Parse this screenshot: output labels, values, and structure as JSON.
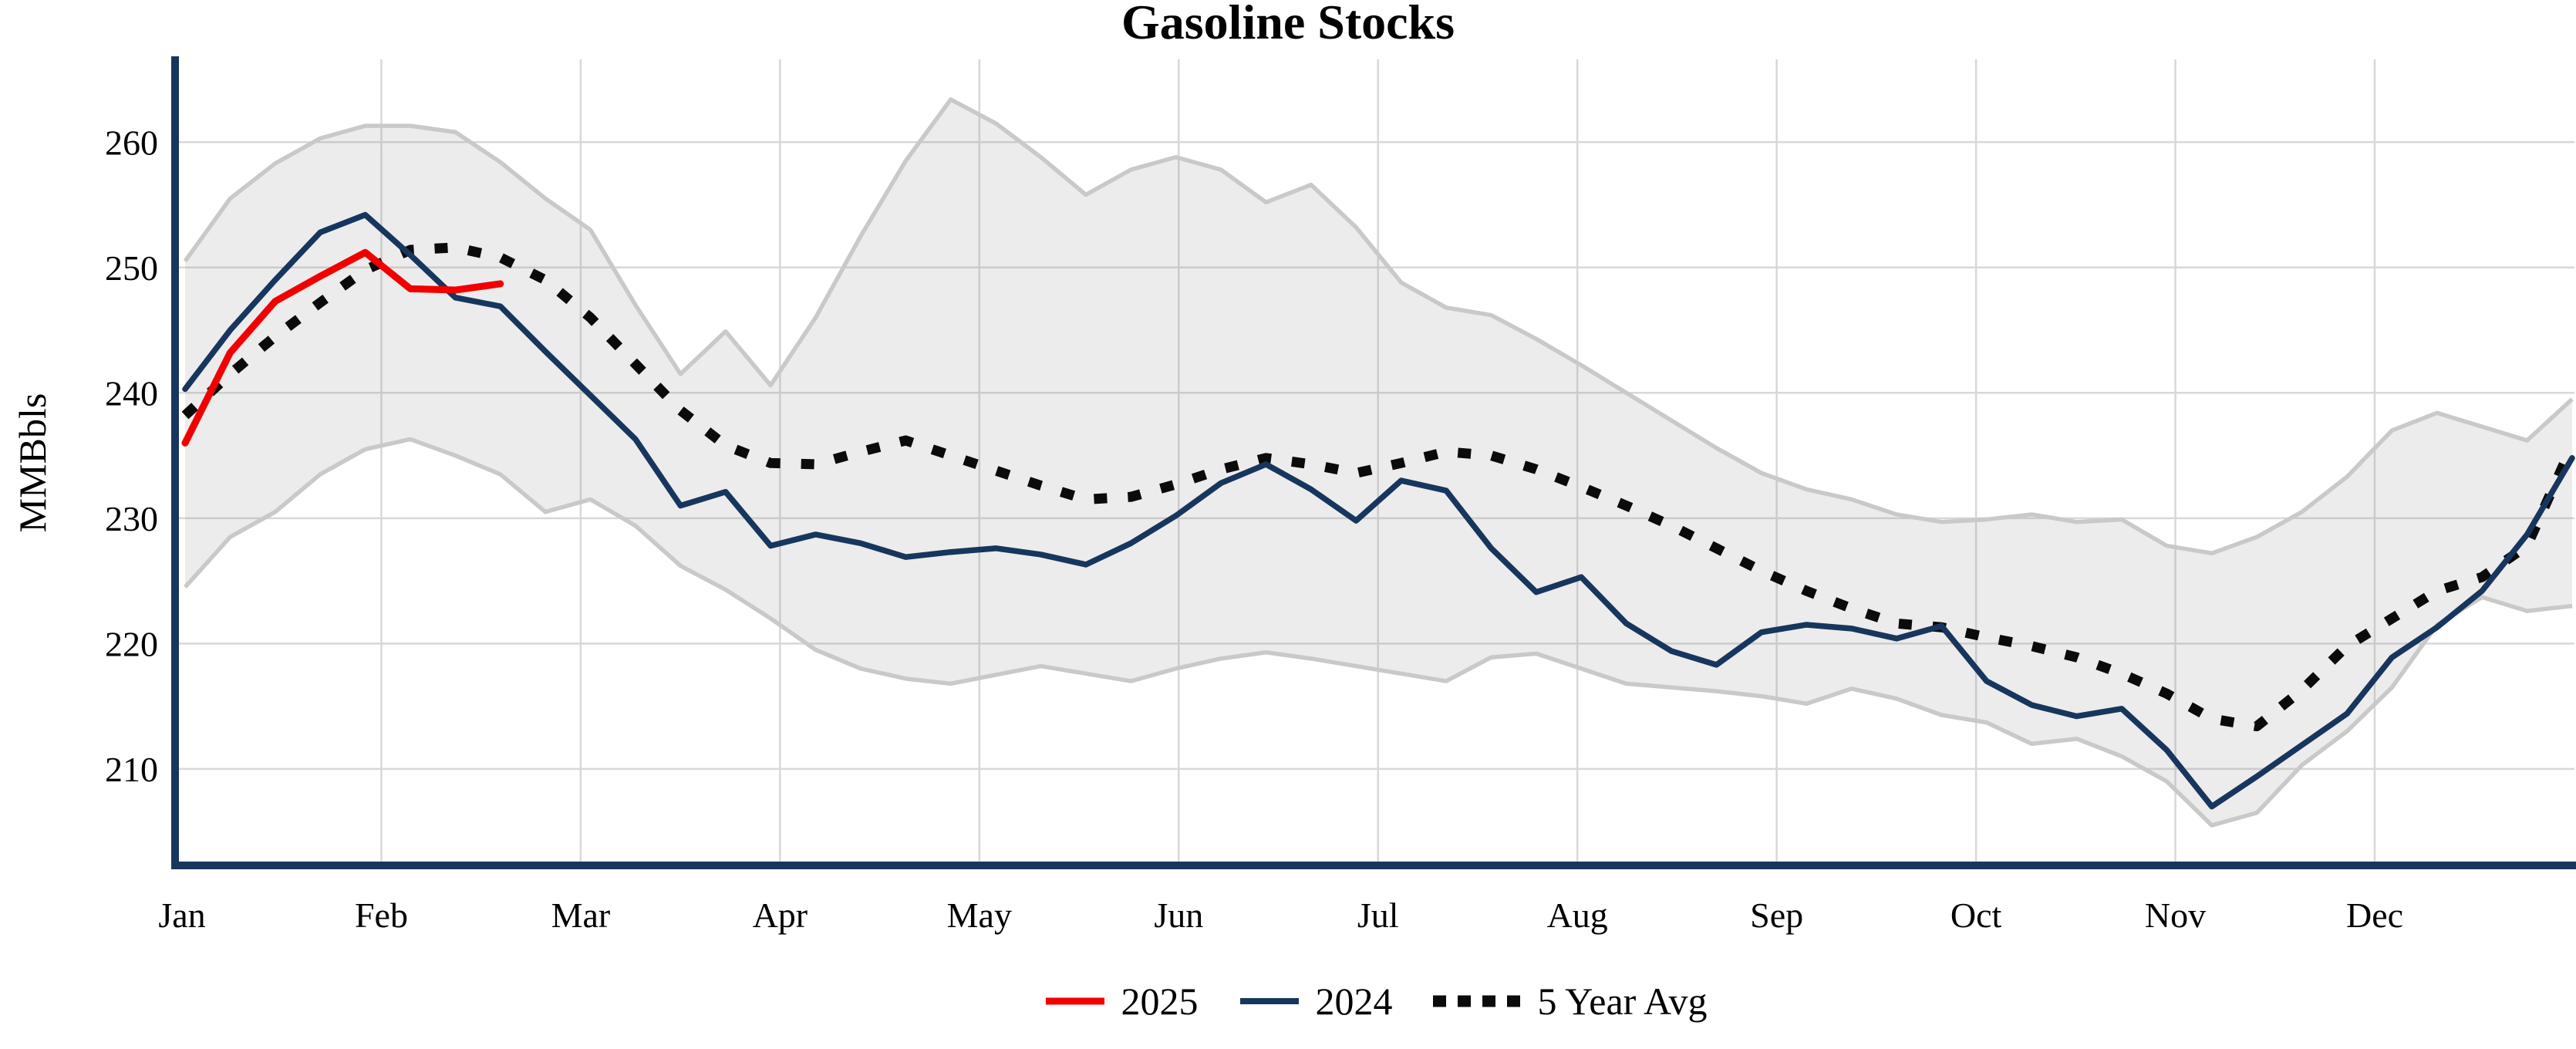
{
  "chart_data": {
    "type": "line",
    "title": "Gasoline Stocks",
    "ylabel": "MMBbls",
    "x_tick_labels": [
      "Jan",
      "Feb",
      "Mar",
      "Apr",
      "May",
      "Jun",
      "Jul",
      "Aug",
      "Sep",
      "Oct",
      "Nov",
      "Dec"
    ],
    "y_ticks": [
      210,
      220,
      230,
      240,
      250,
      260
    ],
    "y_range": [
      202.3,
      266.6
    ],
    "grid": true,
    "legend_position": "bottom-center",
    "series": [
      {
        "name": "2025",
        "color": "#f20000",
        "style": "solid",
        "stroke_width": 9,
        "values": [
          236.0,
          243.2,
          247.3,
          249.3,
          251.2,
          248.3,
          248.2,
          248.7
        ]
      },
      {
        "name": "2024",
        "color": "#17365d",
        "style": "solid",
        "stroke_width": 7.5,
        "values": [
          240.3,
          245.0,
          249.0,
          252.8,
          254.2,
          251.0,
          247.6,
          246.9,
          243.3,
          239.8,
          236.3,
          231.0,
          232.1,
          227.8,
          228.7,
          228.0,
          226.9,
          227.3,
          227.6,
          227.1,
          226.3,
          228.0,
          230.2,
          232.8,
          234.3,
          232.3,
          229.8,
          233.0,
          232.2,
          227.6,
          224.1,
          225.3,
          221.6,
          219.4,
          218.3,
          220.9,
          221.5,
          221.2,
          220.4,
          221.4,
          217.0,
          215.1,
          214.2,
          214.8,
          211.5,
          207.0,
          209.4,
          211.9,
          214.4,
          218.9,
          221.3,
          224.2,
          228.7,
          234.8
        ]
      },
      {
        "name": "5 Year Avg",
        "color": "#0b0b0b",
        "style": "dotted",
        "stroke_width": 13,
        "values": [
          238.2,
          241.5,
          244.5,
          247.2,
          249.8,
          251.4,
          251.6,
          250.8,
          249.0,
          246.0,
          242.3,
          238.6,
          235.8,
          234.4,
          234.3,
          235.3,
          236.2,
          235.0,
          233.8,
          232.6,
          231.5,
          231.7,
          232.7,
          233.9,
          234.8,
          234.3,
          233.6,
          234.4,
          235.3,
          235.0,
          233.9,
          232.5,
          231.0,
          229.4,
          227.6,
          225.8,
          224.2,
          222.8,
          221.6,
          221.3,
          220.5,
          219.8,
          218.9,
          217.6,
          216.0,
          214.0,
          213.4,
          216.3,
          219.8,
          222.0,
          224.2,
          225.3,
          227.8,
          235.8
        ]
      }
    ],
    "band": {
      "label": "5-year range",
      "fill": "#8c8c8c",
      "fill_opacity": 0.17,
      "edge_color": "#c9c9c9",
      "edge_width": 5.5,
      "upper": [
        250.5,
        255.5,
        258.3,
        260.3,
        261.3,
        261.3,
        260.8,
        258.4,
        255.5,
        253.0,
        247.0,
        241.5,
        244.9,
        240.6,
        246.0,
        252.5,
        258.5,
        263.4,
        261.5,
        258.8,
        255.8,
        257.8,
        258.8,
        257.8,
        255.2,
        256.6,
        253.2,
        248.8,
        246.8,
        246.2,
        244.3,
        242.2,
        240.0,
        237.8,
        235.6,
        233.6,
        232.3,
        231.5,
        230.3,
        229.7,
        229.9,
        230.3,
        229.7,
        229.9,
        227.8,
        227.2,
        228.5,
        230.5,
        233.3,
        237.0,
        238.4,
        237.3,
        236.2,
        239.5
      ],
      "lower": [
        224.5,
        228.5,
        230.5,
        233.5,
        235.5,
        236.3,
        235.0,
        233.5,
        230.5,
        231.5,
        229.4,
        226.2,
        224.3,
        222.0,
        219.5,
        218.0,
        217.2,
        216.8,
        217.5,
        218.2,
        217.6,
        217.0,
        218.0,
        218.8,
        219.3,
        218.8,
        218.2,
        217.6,
        217.0,
        218.9,
        219.2,
        218.0,
        216.8,
        216.5,
        216.2,
        215.8,
        215.2,
        216.4,
        215.6,
        214.3,
        213.7,
        212.0,
        212.4,
        211.0,
        209.0,
        205.5,
        206.5,
        210.3,
        213.0,
        216.5,
        221.5,
        223.7,
        222.6,
        223.0
      ]
    },
    "axis": {
      "spine_color": "#17365d",
      "grid_color": "#d8d8d8",
      "tick_font_size": 46
    }
  }
}
